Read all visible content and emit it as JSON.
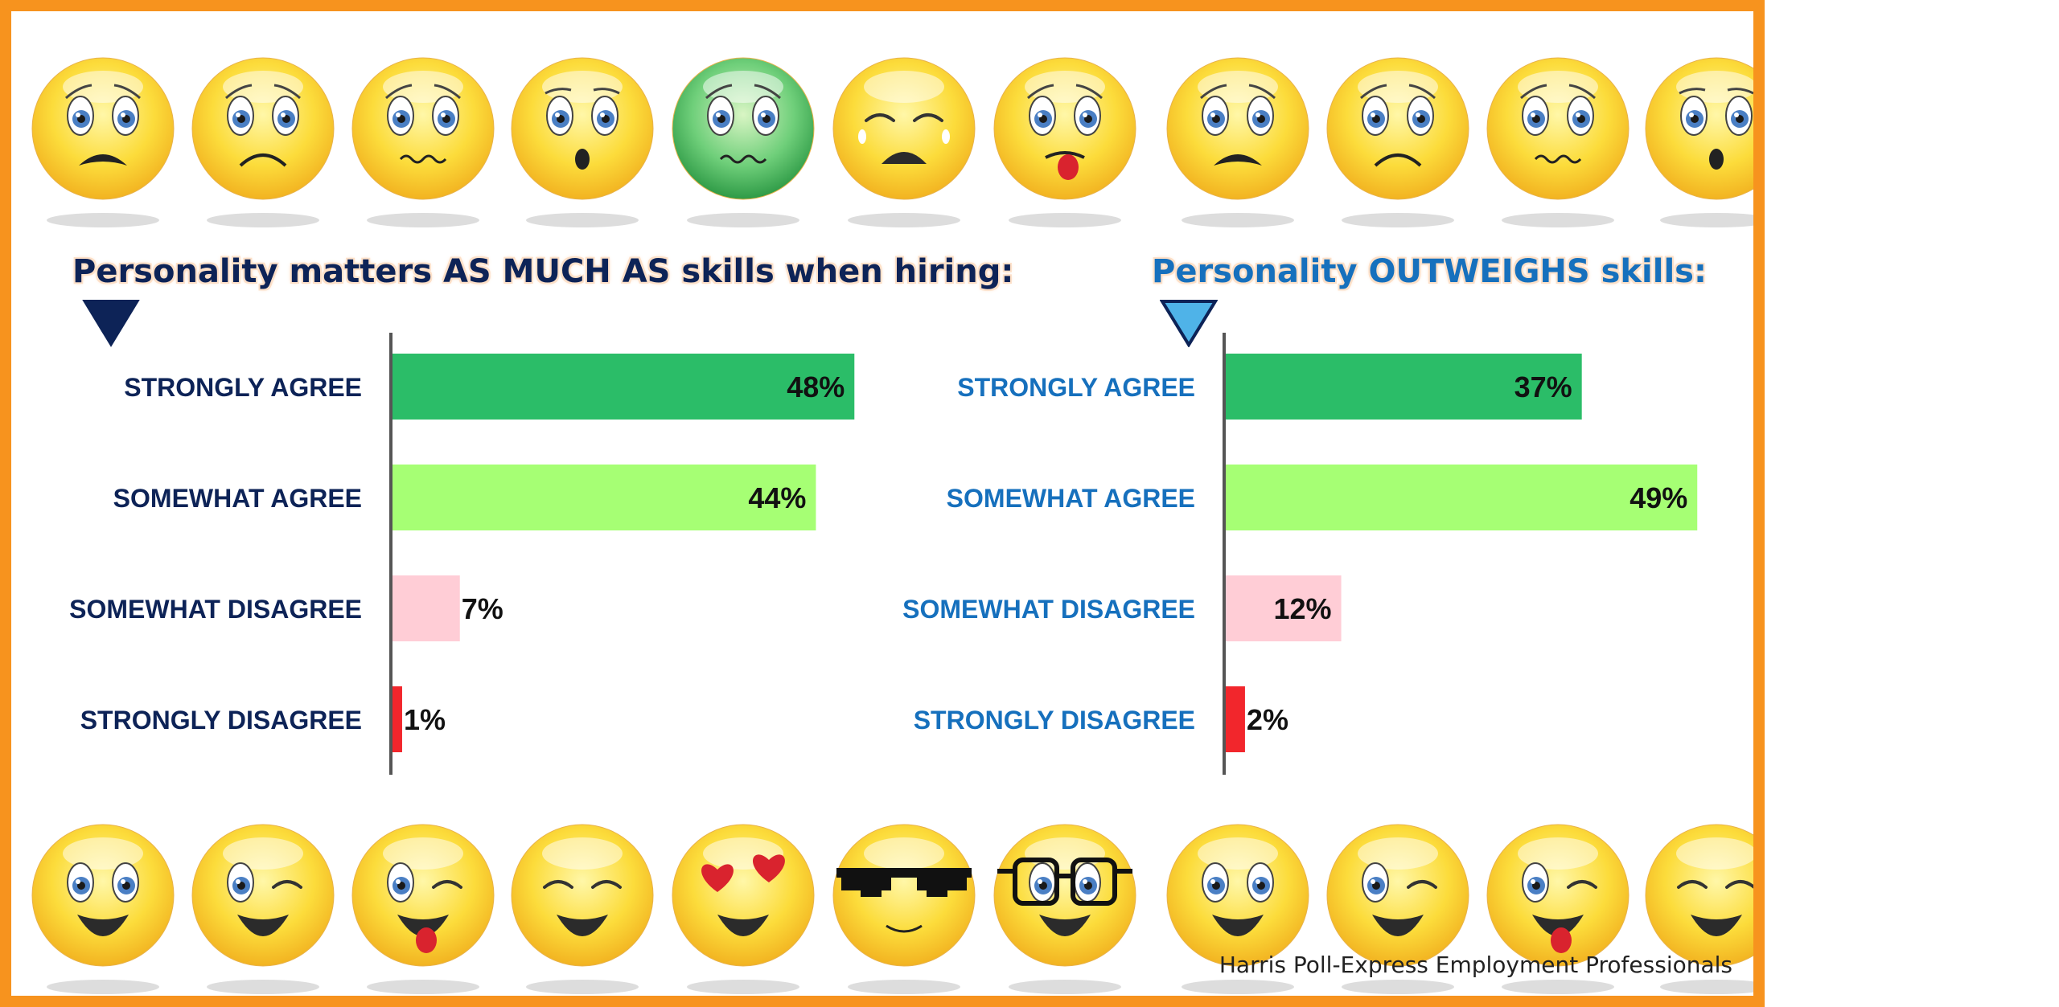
{
  "palette": {
    "frame": "#f7931e",
    "strongly_agree": "#2bbd68",
    "somewhat_agree": "#a6ff74",
    "somewhat_disagree": "#ffcdd6",
    "strongly_disagree": "#f2262c",
    "left_text": "#0d2357",
    "right_text": "#1670bd"
  },
  "emoji_rows": {
    "top": [
      "frowning-face-icon",
      "worried-face-icon",
      "confused-face-icon",
      "surprised-face-icon",
      "nauseated-face-icon",
      "crying-face-icon",
      "tongue-out-face-icon",
      "frowning-face-icon",
      "worried-face-icon",
      "confused-face-icon",
      "surprised-face-icon"
    ],
    "bottom": [
      "grinning-face-icon",
      "winking-face-icon",
      "winking-tongue-face-icon",
      "smiling-closed-eyes-face-icon",
      "heart-eyes-face-icon",
      "sunglasses-face-icon",
      "nerd-glasses-face-icon",
      "grinning-face-icon",
      "winking-face-icon",
      "winking-tongue-face-icon",
      "smiling-closed-eyes-face-icon"
    ]
  },
  "chart_data": [
    {
      "type": "bar",
      "title": "Personality matters AS MUCH AS skills when hiring:",
      "categories": [
        "STRONGLY AGREE",
        "SOMEWHAT AGREE",
        "SOMEWHAT DISAGREE",
        "STRONGLY DISAGREE"
      ],
      "values": [
        48,
        44,
        7,
        1
      ],
      "value_labels": [
        "48%",
        "44%",
        "7%",
        "1%"
      ],
      "orientation": "horizontal",
      "xlim": [
        0,
        56
      ],
      "grid": false,
      "legend": "none"
    },
    {
      "type": "bar",
      "title": "Personality OUTWEIGHS skills:",
      "categories": [
        "STRONGLY AGREE",
        "SOMEWHAT AGREE",
        "SOMEWHAT DISAGREE",
        "STRONGLY DISAGREE"
      ],
      "values": [
        37,
        49,
        12,
        2
      ],
      "value_labels": [
        "37%",
        "49%",
        "12%",
        "2%"
      ],
      "orientation": "horizontal",
      "xlim": [
        0,
        56
      ],
      "grid": false,
      "legend": "none"
    }
  ],
  "source": "Harris Poll-Express Employment Professionals"
}
